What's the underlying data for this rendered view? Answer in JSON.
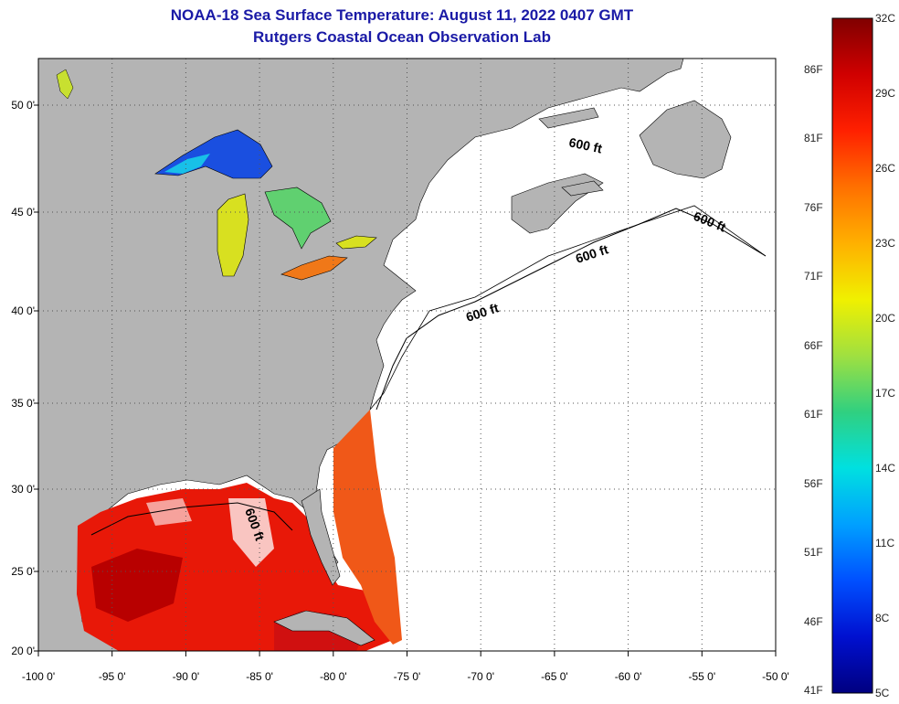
{
  "header": {
    "title": "NOAA-18 Sea Surface Temperature:  August 11, 2022 0407 GMT",
    "subtitle": "Rutgers Coastal Ocean Observation Lab"
  },
  "map": {
    "lon_labels": [
      "-100 0'",
      "-95 0'",
      "-90 0'",
      "-85 0'",
      "-80 0'",
      "-75 0'",
      "-70 0'",
      "-65 0'",
      "-60 0'",
      "-55 0'",
      "-50 0'"
    ],
    "lat_labels": [
      "50 0'",
      "45 0'",
      "40 0'",
      "35 0'",
      "30 0'",
      "25 0'",
      "20 0'"
    ],
    "isobath_label": "600 ft",
    "land_color": "#b4b4b4",
    "ocean_color": "#ffffff"
  },
  "colorbar": {
    "fahrenheit": [
      "86F",
      "81F",
      "76F",
      "71F",
      "66F",
      "61F",
      "56F",
      "51F",
      "46F",
      "41F"
    ],
    "celsius": [
      "32C",
      "29C",
      "26C",
      "23C",
      "20C",
      "17C",
      "14C",
      "11C",
      "8C",
      "5C"
    ],
    "gradient": [
      "#800000",
      "#d00000",
      "#ff2000",
      "#ff7000",
      "#ffb000",
      "#f0f000",
      "#a0e040",
      "#30d080",
      "#00e0e0",
      "#00a0ff",
      "#0050ff",
      "#0010d0",
      "#000080"
    ]
  }
}
